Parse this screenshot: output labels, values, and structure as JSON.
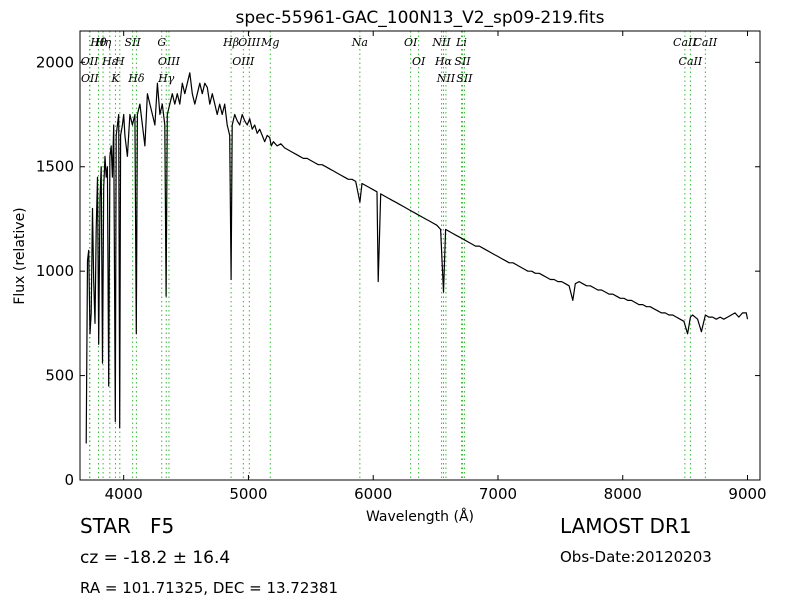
{
  "chart_data": {
    "type": "line",
    "title": "spec-55961-GAC_100N13_V2_sp09-219.fits",
    "xlabel": "Wavelength (Å)",
    "ylabel": "Flux (relative)",
    "xlim": [
      3650,
      9100
    ],
    "ylim": [
      0,
      2150
    ],
    "xticks": [
      4000,
      5000,
      6000,
      7000,
      8000,
      9000
    ],
    "yticks": [
      0,
      500,
      1000,
      1500,
      2000
    ],
    "grid": false,
    "series": [
      {
        "color": "#000000",
        "x": [
          3700,
          3710,
          3720,
          3730,
          3740,
          3750,
          3760,
          3770,
          3780,
          3790,
          3800,
          3810,
          3820,
          3830,
          3840,
          3850,
          3860,
          3870,
          3880,
          3890,
          3900,
          3910,
          3920,
          3933,
          3940,
          3950,
          3960,
          3968,
          3975,
          3990,
          4000,
          4010,
          4030,
          4050,
          4070,
          4090,
          4101,
          4110,
          4130,
          4150,
          4170,
          4190,
          4210,
          4230,
          4250,
          4270,
          4290,
          4310,
          4330,
          4340,
          4350,
          4370,
          4390,
          4410,
          4430,
          4450,
          4470,
          4490,
          4510,
          4530,
          4550,
          4570,
          4590,
          4610,
          4630,
          4650,
          4670,
          4690,
          4710,
          4730,
          4750,
          4770,
          4790,
          4810,
          4830,
          4850,
          4861,
          4870,
          4890,
          4910,
          4930,
          4950,
          4970,
          4990,
          5010,
          5030,
          5050,
          5070,
          5090,
          5110,
          5130,
          5150,
          5170,
          5183,
          5200,
          5230,
          5260,
          5290,
          5320,
          5350,
          5380,
          5410,
          5440,
          5470,
          5500,
          5530,
          5560,
          5590,
          5620,
          5650,
          5680,
          5710,
          5740,
          5770,
          5800,
          5830,
          5860,
          5893,
          5910,
          5940,
          5970,
          6000,
          6030,
          6040,
          6060,
          6090,
          6120,
          6150,
          6180,
          6210,
          6240,
          6270,
          6300,
          6330,
          6360,
          6390,
          6420,
          6450,
          6480,
          6510,
          6540,
          6563,
          6580,
          6610,
          6640,
          6670,
          6700,
          6730,
          6760,
          6790,
          6820,
          6850,
          6880,
          6910,
          6940,
          6970,
          7000,
          7030,
          7060,
          7090,
          7120,
          7150,
          7180,
          7210,
          7240,
          7270,
          7300,
          7330,
          7360,
          7390,
          7420,
          7450,
          7480,
          7510,
          7540,
          7570,
          7600,
          7620,
          7650,
          7680,
          7710,
          7740,
          7770,
          7800,
          7830,
          7860,
          7890,
          7920,
          7950,
          7980,
          8010,
          8040,
          8070,
          8100,
          8130,
          8160,
          8190,
          8220,
          8250,
          8280,
          8310,
          8340,
          8370,
          8400,
          8430,
          8460,
          8490,
          8520,
          8542,
          8560,
          8580,
          8600,
          8630,
          8662,
          8690,
          8720,
          8750,
          8780,
          8810,
          8840,
          8870,
          8900,
          8930,
          8960,
          8990,
          9000
        ],
        "y": [
          175,
          1050,
          1100,
          700,
          800,
          1300,
          950,
          750,
          1200,
          1450,
          650,
          1350,
          1500,
          560,
          1400,
          1550,
          1450,
          1500,
          450,
          1550,
          1600,
          1450,
          1700,
          280,
          1650,
          1700,
          1750,
          250,
          1650,
          1700,
          1750,
          1650,
          1550,
          1750,
          1700,
          1750,
          700,
          1750,
          1800,
          1700,
          1600,
          1850,
          1800,
          1750,
          1700,
          1900,
          1750,
          1800,
          1700,
          880,
          1750,
          1800,
          1850,
          1800,
          1850,
          1800,
          1900,
          1850,
          1900,
          1950,
          1850,
          1800,
          1850,
          1900,
          1850,
          1900,
          1880,
          1800,
          1850,
          1800,
          1750,
          1800,
          1750,
          1800,
          1700,
          1650,
          960,
          1700,
          1750,
          1720,
          1700,
          1750,
          1720,
          1700,
          1730,
          1680,
          1700,
          1660,
          1680,
          1650,
          1620,
          1650,
          1640,
          1600,
          1620,
          1600,
          1610,
          1590,
          1580,
          1570,
          1560,
          1550,
          1540,
          1540,
          1530,
          1520,
          1510,
          1510,
          1500,
          1490,
          1480,
          1470,
          1460,
          1450,
          1440,
          1440,
          1430,
          1330,
          1420,
          1410,
          1400,
          1390,
          1380,
          950,
          1370,
          1360,
          1350,
          1340,
          1330,
          1320,
          1310,
          1300,
          1290,
          1280,
          1270,
          1260,
          1250,
          1240,
          1230,
          1220,
          1200,
          900,
          1200,
          1190,
          1180,
          1170,
          1160,
          1150,
          1140,
          1130,
          1120,
          1120,
          1110,
          1100,
          1090,
          1080,
          1070,
          1060,
          1050,
          1040,
          1040,
          1030,
          1020,
          1010,
          1000,
          1000,
          990,
          990,
          980,
          970,
          960,
          960,
          950,
          950,
          940,
          930,
          860,
          940,
          950,
          940,
          930,
          930,
          920,
          910,
          910,
          900,
          890,
          890,
          880,
          870,
          870,
          860,
          860,
          850,
          840,
          840,
          830,
          830,
          820,
          810,
          800,
          800,
          790,
          790,
          780,
          770,
          760,
          700,
          780,
          790,
          780,
          770,
          710,
          790,
          780,
          780,
          770,
          780,
          770,
          780,
          790,
          800,
          780,
          800,
          800,
          770
        ]
      }
    ],
    "annotations": [
      {
        "label": "Hθ",
        "x": 3798
      },
      {
        "label": "OII",
        "x": 3727
      },
      {
        "label": "OII",
        "x": 3729
      },
      {
        "label": "Hη",
        "x": 3835
      },
      {
        "label": "Hε",
        "x": 3889
      },
      {
        "label": "K",
        "x": 3934
      },
      {
        "label": "SII",
        "x": 4072
      },
      {
        "label": "H",
        "x": 3969
      },
      {
        "label": "Hδ",
        "x": 4102
      },
      {
        "label": "G",
        "x": 4305
      },
      {
        "label": "OIII",
        "x": 4363
      },
      {
        "label": "Hγ",
        "x": 4341
      },
      {
        "label": "Hβ",
        "x": 4861
      },
      {
        "label": "OIII",
        "x": 4959
      },
      {
        "label": "OIII",
        "x": 5007
      },
      {
        "label": "Mg",
        "x": 5175
      },
      {
        "label": "Na",
        "x": 5893
      },
      {
        "label": "OI",
        "x": 6300
      },
      {
        "label": "OI",
        "x": 6364
      },
      {
        "label": "NII",
        "x": 6548
      },
      {
        "label": "Hα",
        "x": 6563
      },
      {
        "label": "NII",
        "x": 6583
      },
      {
        "label": "Li",
        "x": 6708
      },
      {
        "label": "SII",
        "x": 6716
      },
      {
        "label": "SII",
        "x": 6731
      },
      {
        "label": "CaII",
        "x": 8498
      },
      {
        "label": "CaII",
        "x": 8542
      },
      {
        "label": "CaII",
        "x": 8662
      }
    ]
  },
  "info": {
    "object_type": "STAR   F5",
    "cz": "cz = -18.2 ± 16.4",
    "radec": "RA = 101.71325, DEC = 13.72381",
    "survey": "LAMOST DR1",
    "obs_date": "Obs-Date:20120203"
  }
}
